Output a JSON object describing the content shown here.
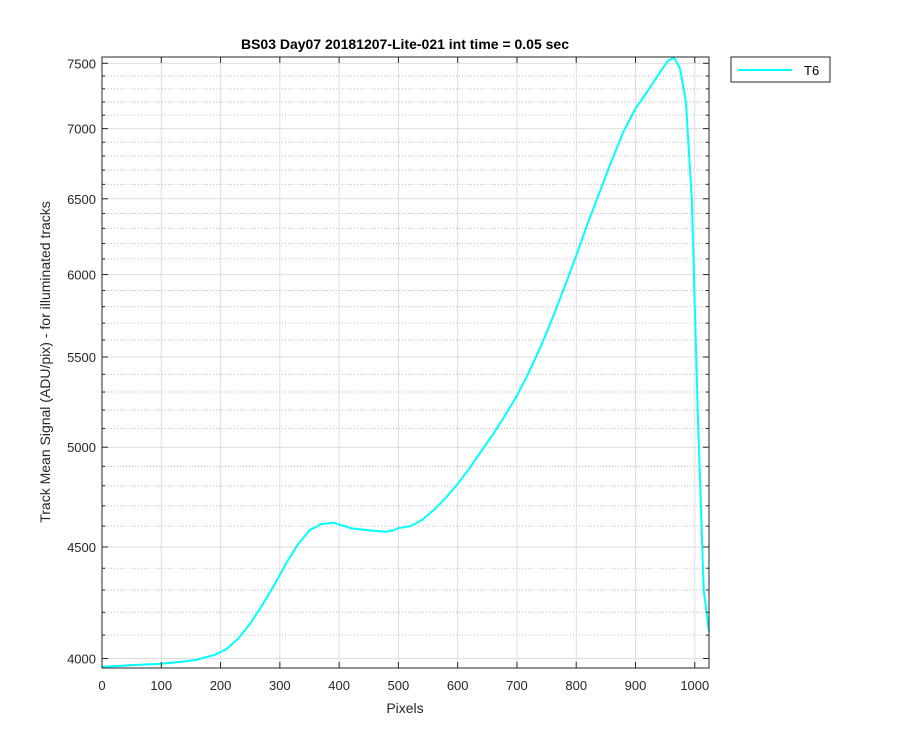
{
  "chart_data": {
    "type": "line",
    "title": "BS03 Day07 20181207-Lite-021 int time = 0.05 sec",
    "xlabel": "Pixels",
    "ylabel": "Track Mean Signal (ADU/pix) - for illuminated tracks",
    "xlim": [
      0,
      1024
    ],
    "ylim": [
      3960,
      7550
    ],
    "yscale": "log",
    "x_ticks": [
      0,
      100,
      200,
      300,
      400,
      500,
      600,
      700,
      800,
      900,
      1000
    ],
    "x_tick_labels": [
      "0",
      "100",
      "200",
      "300",
      "400",
      "500",
      "600",
      "700",
      "800",
      "900",
      "1000"
    ],
    "y_ticks": [
      4000,
      4500,
      5000,
      5500,
      6000,
      6500,
      7000,
      7500
    ],
    "y_tick_labels": [
      "4000",
      "4500",
      "5000",
      "5500",
      "6000",
      "6500",
      "7000",
      "7500"
    ],
    "grid": true,
    "minor_grid": true,
    "legend_position": "outside-top-right",
    "series": [
      {
        "name": "T6",
        "color": "#00ffff",
        "x": [
          0,
          20,
          50,
          100,
          130,
          160,
          190,
          210,
          230,
          250,
          270,
          290,
          310,
          330,
          350,
          370,
          390,
          400,
          420,
          450,
          470,
          480,
          490,
          500,
          520,
          540,
          560,
          580,
          600,
          620,
          640,
          660,
          680,
          700,
          720,
          740,
          760,
          780,
          800,
          820,
          840,
          860,
          880,
          900,
          920,
          940,
          955,
          965,
          975,
          985,
          995,
          1005,
          1015,
          1024
        ],
        "values": [
          3965,
          3967,
          3972,
          3978,
          3985,
          3995,
          4015,
          4040,
          4085,
          4150,
          4230,
          4320,
          4420,
          4510,
          4580,
          4610,
          4617,
          4608,
          4590,
          4580,
          4575,
          4573,
          4578,
          4590,
          4600,
          4630,
          4680,
          4740,
          4810,
          4890,
          4980,
          5070,
          5170,
          5280,
          5410,
          5560,
          5730,
          5920,
          6120,
          6340,
          6550,
          6770,
          6980,
          7150,
          7280,
          7420,
          7520,
          7545,
          7460,
          7200,
          6500,
          5200,
          4300,
          4115
        ]
      }
    ]
  }
}
